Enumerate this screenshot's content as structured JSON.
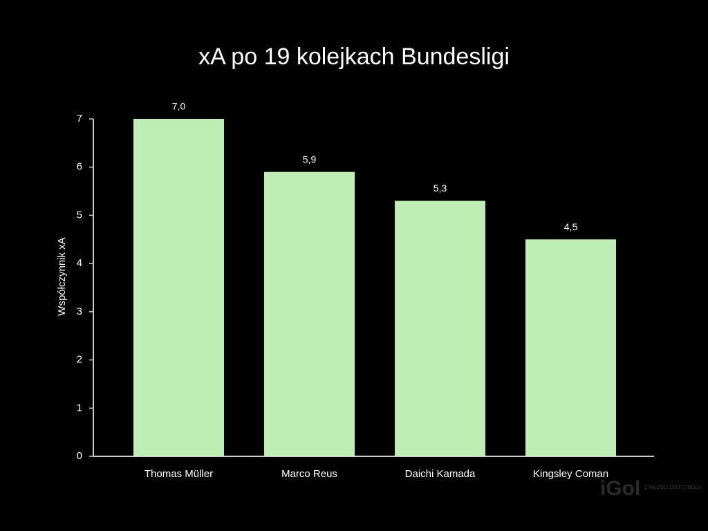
{
  "chart_data": {
    "type": "bar",
    "title": "xA po 19 kolejkach Bundesligi",
    "y_label": "Współczynnik xA",
    "categories": [
      "Thomas Müller",
      "Marco Reus",
      "Daichi Kamada",
      "Kingsley Coman"
    ],
    "values": [
      7.0,
      5.9,
      5.3,
      4.5
    ],
    "value_labels": [
      "7,0",
      "5,9",
      "5,3",
      "4,5"
    ],
    "color": "#c0edb3",
    "ylim": [
      0,
      7
    ],
    "yticks": [
      0,
      1,
      2,
      3,
      4,
      5,
      6,
      7
    ]
  },
  "watermark": {
    "logo": "iGol",
    "tagline": "Z MIŁOŚCI DO FUTBOLU"
  }
}
